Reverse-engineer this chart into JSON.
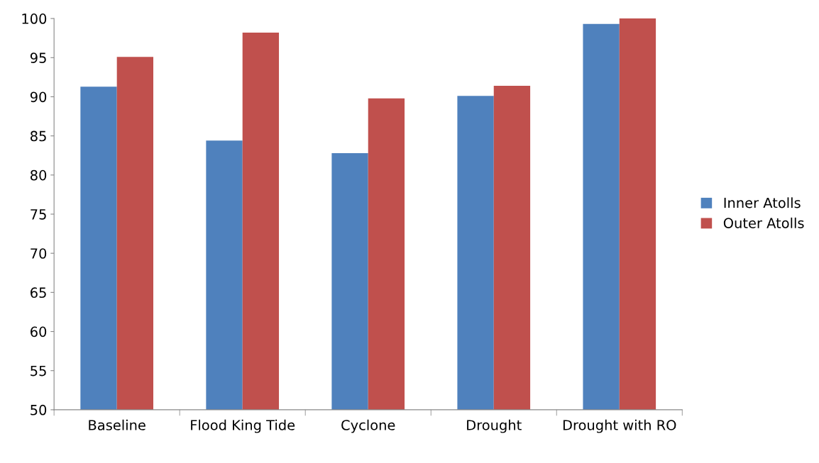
{
  "chart_data": {
    "type": "bar",
    "categories": [
      "Baseline",
      "Flood King Tide",
      "Cyclone",
      "Drought",
      "Drought with RO"
    ],
    "series": [
      {
        "name": "Inner Atolls",
        "color": "#4f81bd",
        "values": [
          91.3,
          84.4,
          82.8,
          90.1,
          99.3
        ]
      },
      {
        "name": "Outer Atolls",
        "color": "#c0504d",
        "values": [
          95.1,
          98.2,
          89.8,
          91.4,
          100
        ]
      }
    ],
    "ylim": [
      50,
      100
    ],
    "yticks": [
      50,
      55,
      60,
      65,
      70,
      75,
      80,
      85,
      90,
      95,
      100
    ],
    "grid": false,
    "legend": "right"
  }
}
